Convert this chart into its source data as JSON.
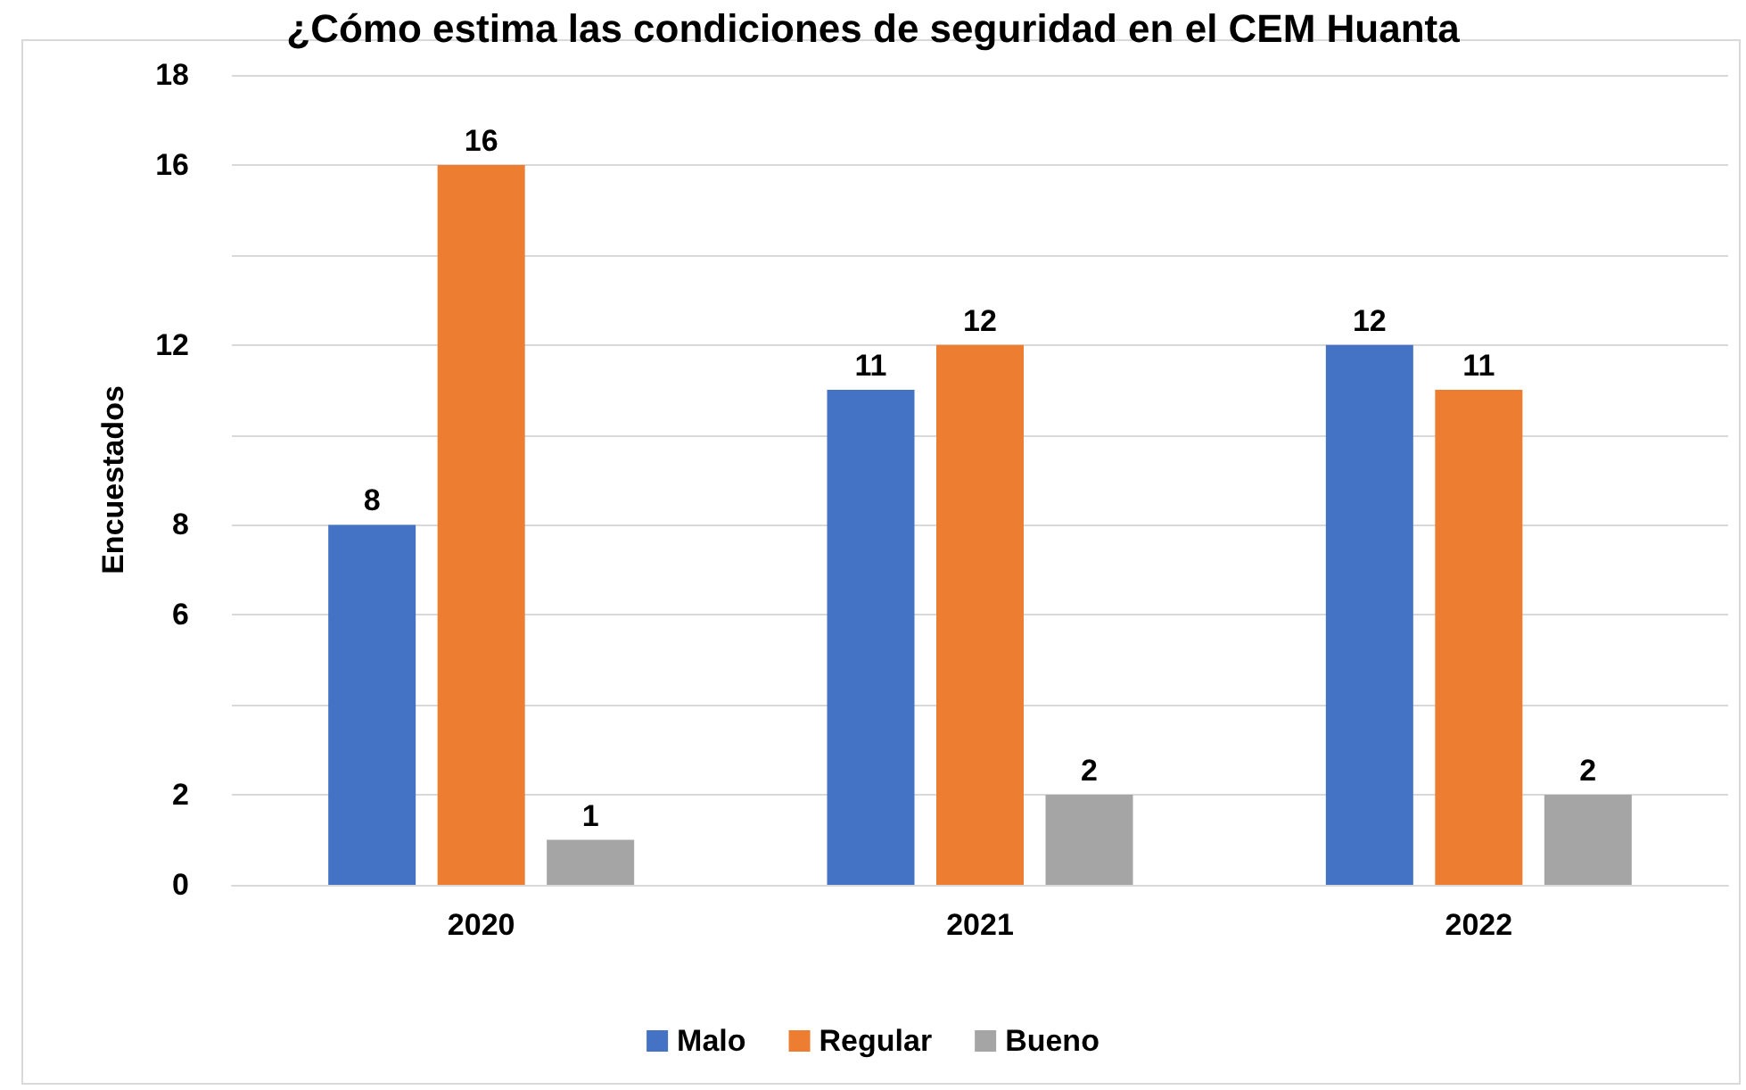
{
  "chart_data": {
    "type": "bar",
    "title": "¿Cómo estima las condiciones de seguridad en el CEM Huanta",
    "ylabel": "Encuestados",
    "categories": [
      "2020",
      "2021",
      "2022"
    ],
    "series": [
      {
        "name": "Malo",
        "color": "#4472c4",
        "values": [
          8,
          11,
          12
        ]
      },
      {
        "name": "Regular",
        "color": "#ed7d31",
        "values": [
          16,
          12,
          11
        ]
      },
      {
        "name": "Bueno",
        "color": "#a5a5a5",
        "values": [
          1,
          2,
          2
        ]
      }
    ],
    "ylim": [
      0,
      18
    ],
    "yticks": [
      0,
      2,
      {
        "value": 4,
        "label": null
      },
      6,
      8,
      {
        "value": 10,
        "label": null
      },
      12,
      {
        "value": 14,
        "label": null
      },
      16,
      18
    ],
    "grid": "y",
    "legend": "bottom",
    "data_labels": true
  }
}
